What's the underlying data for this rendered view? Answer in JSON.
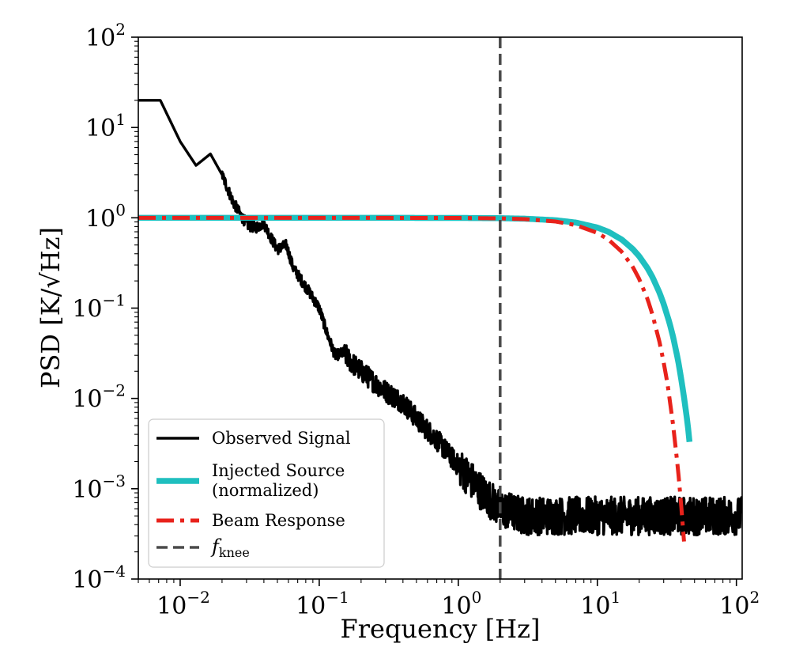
{
  "chart_data": {
    "type": "line",
    "xlabel": "Frequency [Hz]",
    "ylabel": "PSD [K/√Hz]",
    "xscale": "log",
    "yscale": "log",
    "xlim": [
      0.005,
      110
    ],
    "ylim": [
      0.0001,
      100
    ],
    "x_ticks": [
      {
        "value": 0.01,
        "base": "10",
        "exp": "−2"
      },
      {
        "value": 0.1,
        "base": "10",
        "exp": "−1"
      },
      {
        "value": 1,
        "base": "10",
        "exp": "0"
      },
      {
        "value": 10,
        "base": "10",
        "exp": "1"
      },
      {
        "value": 100,
        "base": "10",
        "exp": "2"
      }
    ],
    "y_ticks": [
      {
        "value": 0.0001,
        "base": "10",
        "exp": "−4"
      },
      {
        "value": 0.001,
        "base": "10",
        "exp": "−3"
      },
      {
        "value": 0.01,
        "base": "10",
        "exp": "−2"
      },
      {
        "value": 0.1,
        "base": "10",
        "exp": "−1"
      },
      {
        "value": 1,
        "base": "10",
        "exp": "0"
      },
      {
        "value": 10,
        "base": "10",
        "exp": "1"
      },
      {
        "value": 100,
        "base": "10",
        "exp": "2"
      }
    ],
    "grid": false,
    "legend_position": "lower-left",
    "series": [
      {
        "name": "Observed Signal",
        "color": "#000000",
        "style": "solid",
        "noise_floor": 0.0005,
        "x": [
          0.005,
          0.0072,
          0.01,
          0.013,
          0.0165,
          0.02,
          0.024,
          0.028,
          0.031,
          0.035,
          0.04,
          0.045,
          0.05,
          0.058,
          0.065,
          0.075,
          0.085,
          0.1,
          0.115,
          0.13,
          0.15,
          0.17,
          0.2,
          0.25,
          0.3,
          0.4,
          0.5,
          0.7,
          1.0,
          1.5,
          2.0,
          3.0,
          5.0,
          10.0,
          20.0,
          50.0,
          110.0
        ],
        "y": [
          20,
          20,
          7,
          3.8,
          5.1,
          3,
          1.5,
          1.0,
          0.82,
          0.78,
          0.87,
          0.6,
          0.45,
          0.5,
          0.28,
          0.2,
          0.15,
          0.1,
          0.05,
          0.03,
          0.032,
          0.025,
          0.02,
          0.015,
          0.012,
          0.009,
          0.006,
          0.0035,
          0.0018,
          0.0009,
          0.0006,
          0.0005,
          0.0005,
          0.0005,
          0.0005,
          0.0005,
          0.0005
        ]
      },
      {
        "name": "Injected Source (normalized)",
        "color": "#1fbfbf",
        "style": "solid",
        "x": [
          0.005,
          0.01,
          0.1,
          1,
          2,
          3,
          5,
          7,
          10,
          12,
          15,
          18,
          20,
          23,
          25,
          28,
          30,
          33,
          35,
          38,
          40,
          42,
          44,
          45,
          46
        ],
        "y": [
          1.0,
          1.0,
          1.0,
          0.997,
          0.99,
          0.978,
          0.94,
          0.886,
          0.78,
          0.7,
          0.574,
          0.45,
          0.375,
          0.275,
          0.218,
          0.148,
          0.111,
          0.069,
          0.0485,
          0.0268,
          0.0168,
          0.0103,
          0.0061,
          0.0046,
          0.0033
        ]
      },
      {
        "name": "Beam Response",
        "color": "#e8221b",
        "style": "dashdot",
        "x": [
          0.005,
          0.01,
          0.1,
          1,
          2,
          3,
          5,
          7,
          10,
          12,
          15,
          18,
          20,
          23,
          25,
          28,
          30,
          32,
          35,
          38,
          40,
          41,
          42
        ],
        "y": [
          1.0,
          1.0,
          1.0,
          0.996,
          0.985,
          0.967,
          0.91,
          0.83,
          0.68,
          0.575,
          0.42,
          0.285,
          0.21,
          0.125,
          0.083,
          0.042,
          0.025,
          0.0143,
          0.0052,
          0.00166,
          0.00068,
          0.00042,
          0.00026
        ]
      }
    ],
    "annotations": [
      {
        "type": "vline",
        "x": 2.0,
        "color": "#4a4a4a",
        "style": "dashed",
        "name": "f_knee"
      }
    ],
    "legend": [
      {
        "label_lines": [
          "Observed Signal"
        ],
        "color": "#000000",
        "style": "solid"
      },
      {
        "label_lines": [
          "Injected Source",
          "(normalized)"
        ],
        "color": "#1fbfbf",
        "style": "thick"
      },
      {
        "label_lines": [
          "Beam Response"
        ],
        "color": "#e8221b",
        "style": "dashdot"
      },
      {
        "label_lines": [
          "f",
          "knee"
        ],
        "color": "#4a4a4a",
        "style": "dashed",
        "math": true
      }
    ]
  }
}
